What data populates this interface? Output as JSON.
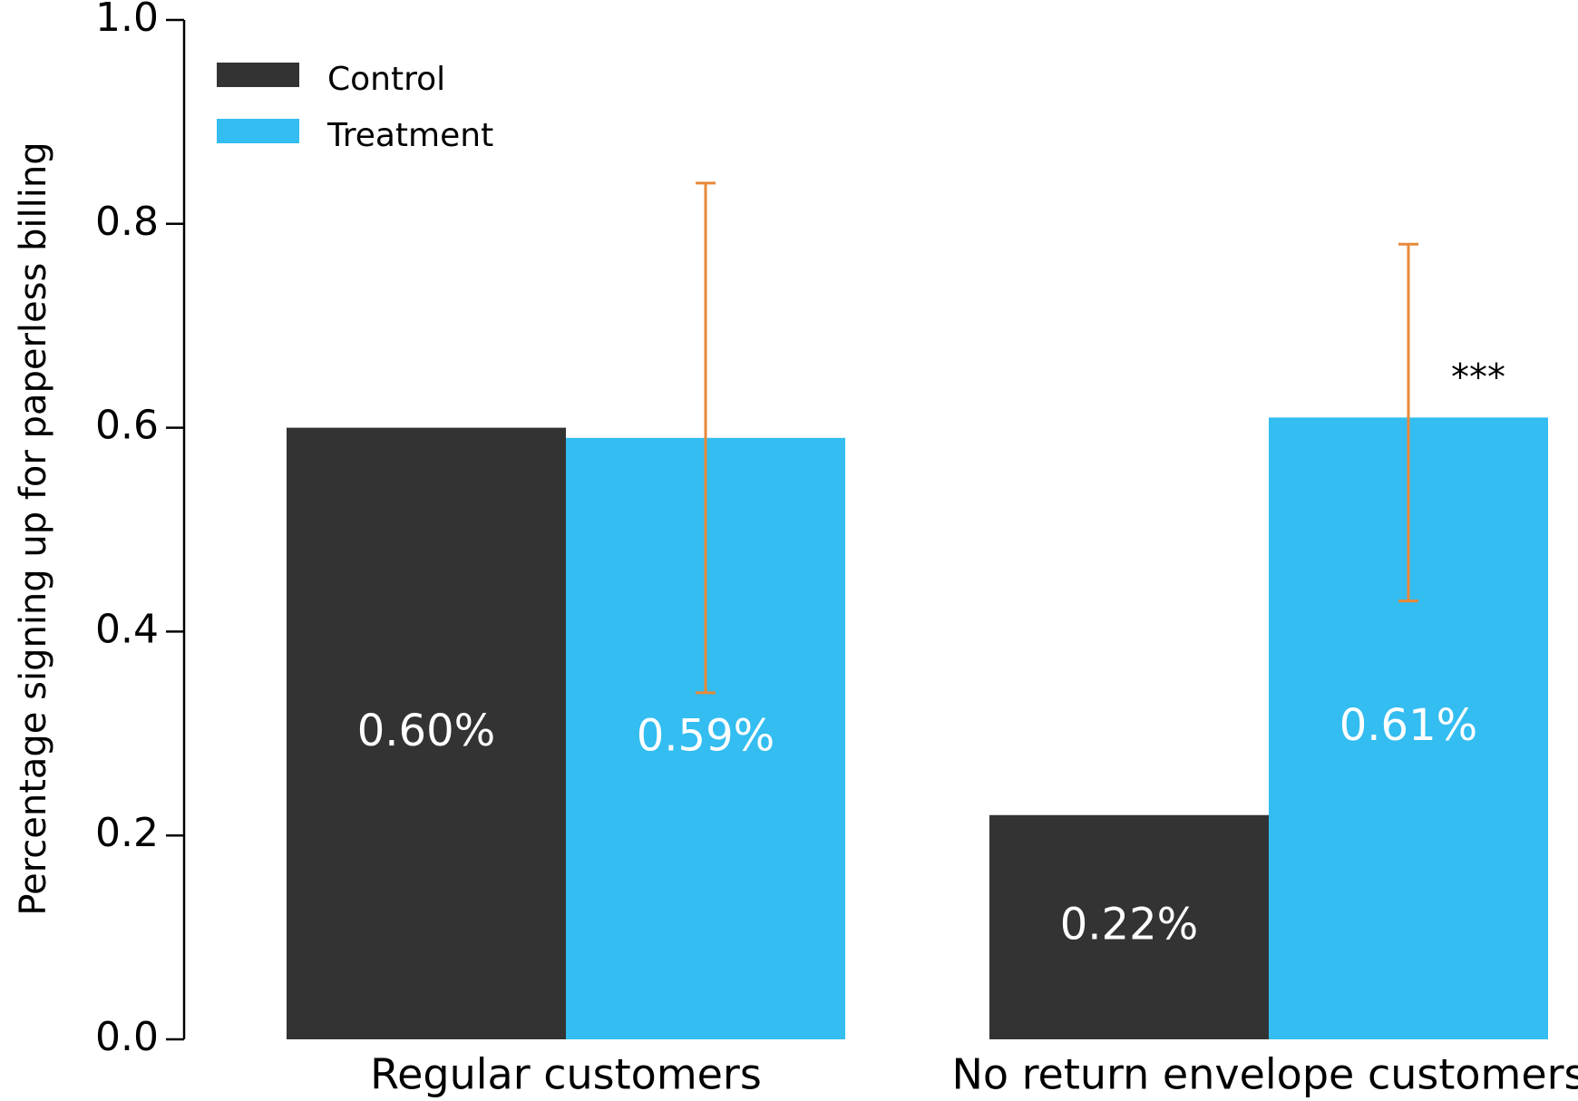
{
  "chart_data": {
    "type": "bar",
    "y_label": "Percentage signing up for paperless billing",
    "categories": [
      "Regular customers",
      "No return envelope customers"
    ],
    "series": [
      {
        "name": "Control",
        "color": "#333333",
        "values": [
          0.6,
          0.22
        ],
        "value_labels": [
          "0.60%",
          "0.22%"
        ]
      },
      {
        "name": "Treatment",
        "color": "#33bdf0",
        "values": [
          0.59,
          0.61
        ],
        "value_labels": [
          "0.59%",
          "0.61%"
        ],
        "error_lower": [
          0.34,
          0.43
        ],
        "error_upper": [
          0.84,
          0.78
        ],
        "error_color": "#e8893a"
      }
    ],
    "annotations": [
      {
        "text": "***"
      }
    ],
    "ylim": [
      0,
      1
    ],
    "yticks": [
      {
        "value": 0,
        "label": "0.0"
      },
      0.2,
      0.4,
      0.6,
      0.8,
      {
        "value": 1,
        "label": "1.0"
      }
    ],
    "legend": "upper left",
    "grid": false
  }
}
